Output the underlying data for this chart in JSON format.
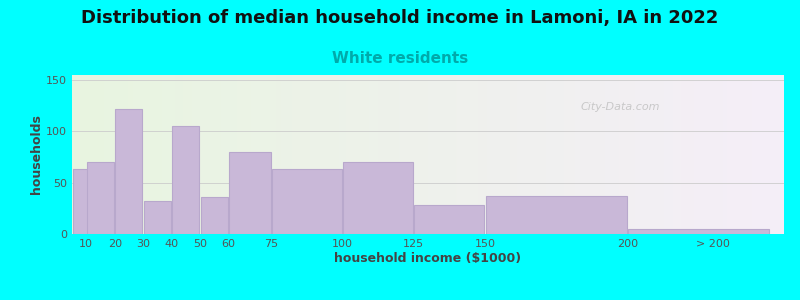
{
  "title": "Distribution of median household income in Lamoni, IA in 2022",
  "subtitle": "White residents",
  "xlabel": "household income ($1000)",
  "ylabel": "households",
  "bar_labels": [
    "10",
    "20",
    "30",
    "40",
    "50",
    "60",
    "75",
    "100",
    "125",
    "150",
    "200",
    "> 200"
  ],
  "bar_values": [
    63,
    70,
    122,
    32,
    105,
    36,
    80,
    63,
    70,
    28,
    37,
    5
  ],
  "bar_left_edges": [
    5,
    10,
    20,
    30,
    40,
    50,
    60,
    75,
    100,
    125,
    150,
    200
  ],
  "bar_widths": [
    10,
    10,
    10,
    10,
    10,
    10,
    15,
    25,
    25,
    25,
    50,
    50
  ],
  "bar_color": "#c9b8d8",
  "bar_edge_color": "#b8a8cc",
  "ylim": [
    0,
    155
  ],
  "yticks": [
    0,
    50,
    100,
    150
  ],
  "xlim": [
    5,
    255
  ],
  "xtick_positions": [
    10,
    20,
    30,
    40,
    50,
    60,
    75,
    100,
    125,
    150,
    200,
    230
  ],
  "xtick_labels": [
    "10",
    "20",
    "30",
    "40",
    "50",
    "60",
    "75",
    "100",
    "125",
    "150",
    "200",
    "> 200"
  ],
  "background_color": "#00ffff",
  "plot_bg_gradient_left": "#e8f5e0",
  "plot_bg_gradient_right": "#f5eef8",
  "title_fontsize": 13,
  "subtitle_fontsize": 11,
  "subtitle_color": "#00aaaa",
  "axis_label_fontsize": 9,
  "watermark": "City-Data.com"
}
